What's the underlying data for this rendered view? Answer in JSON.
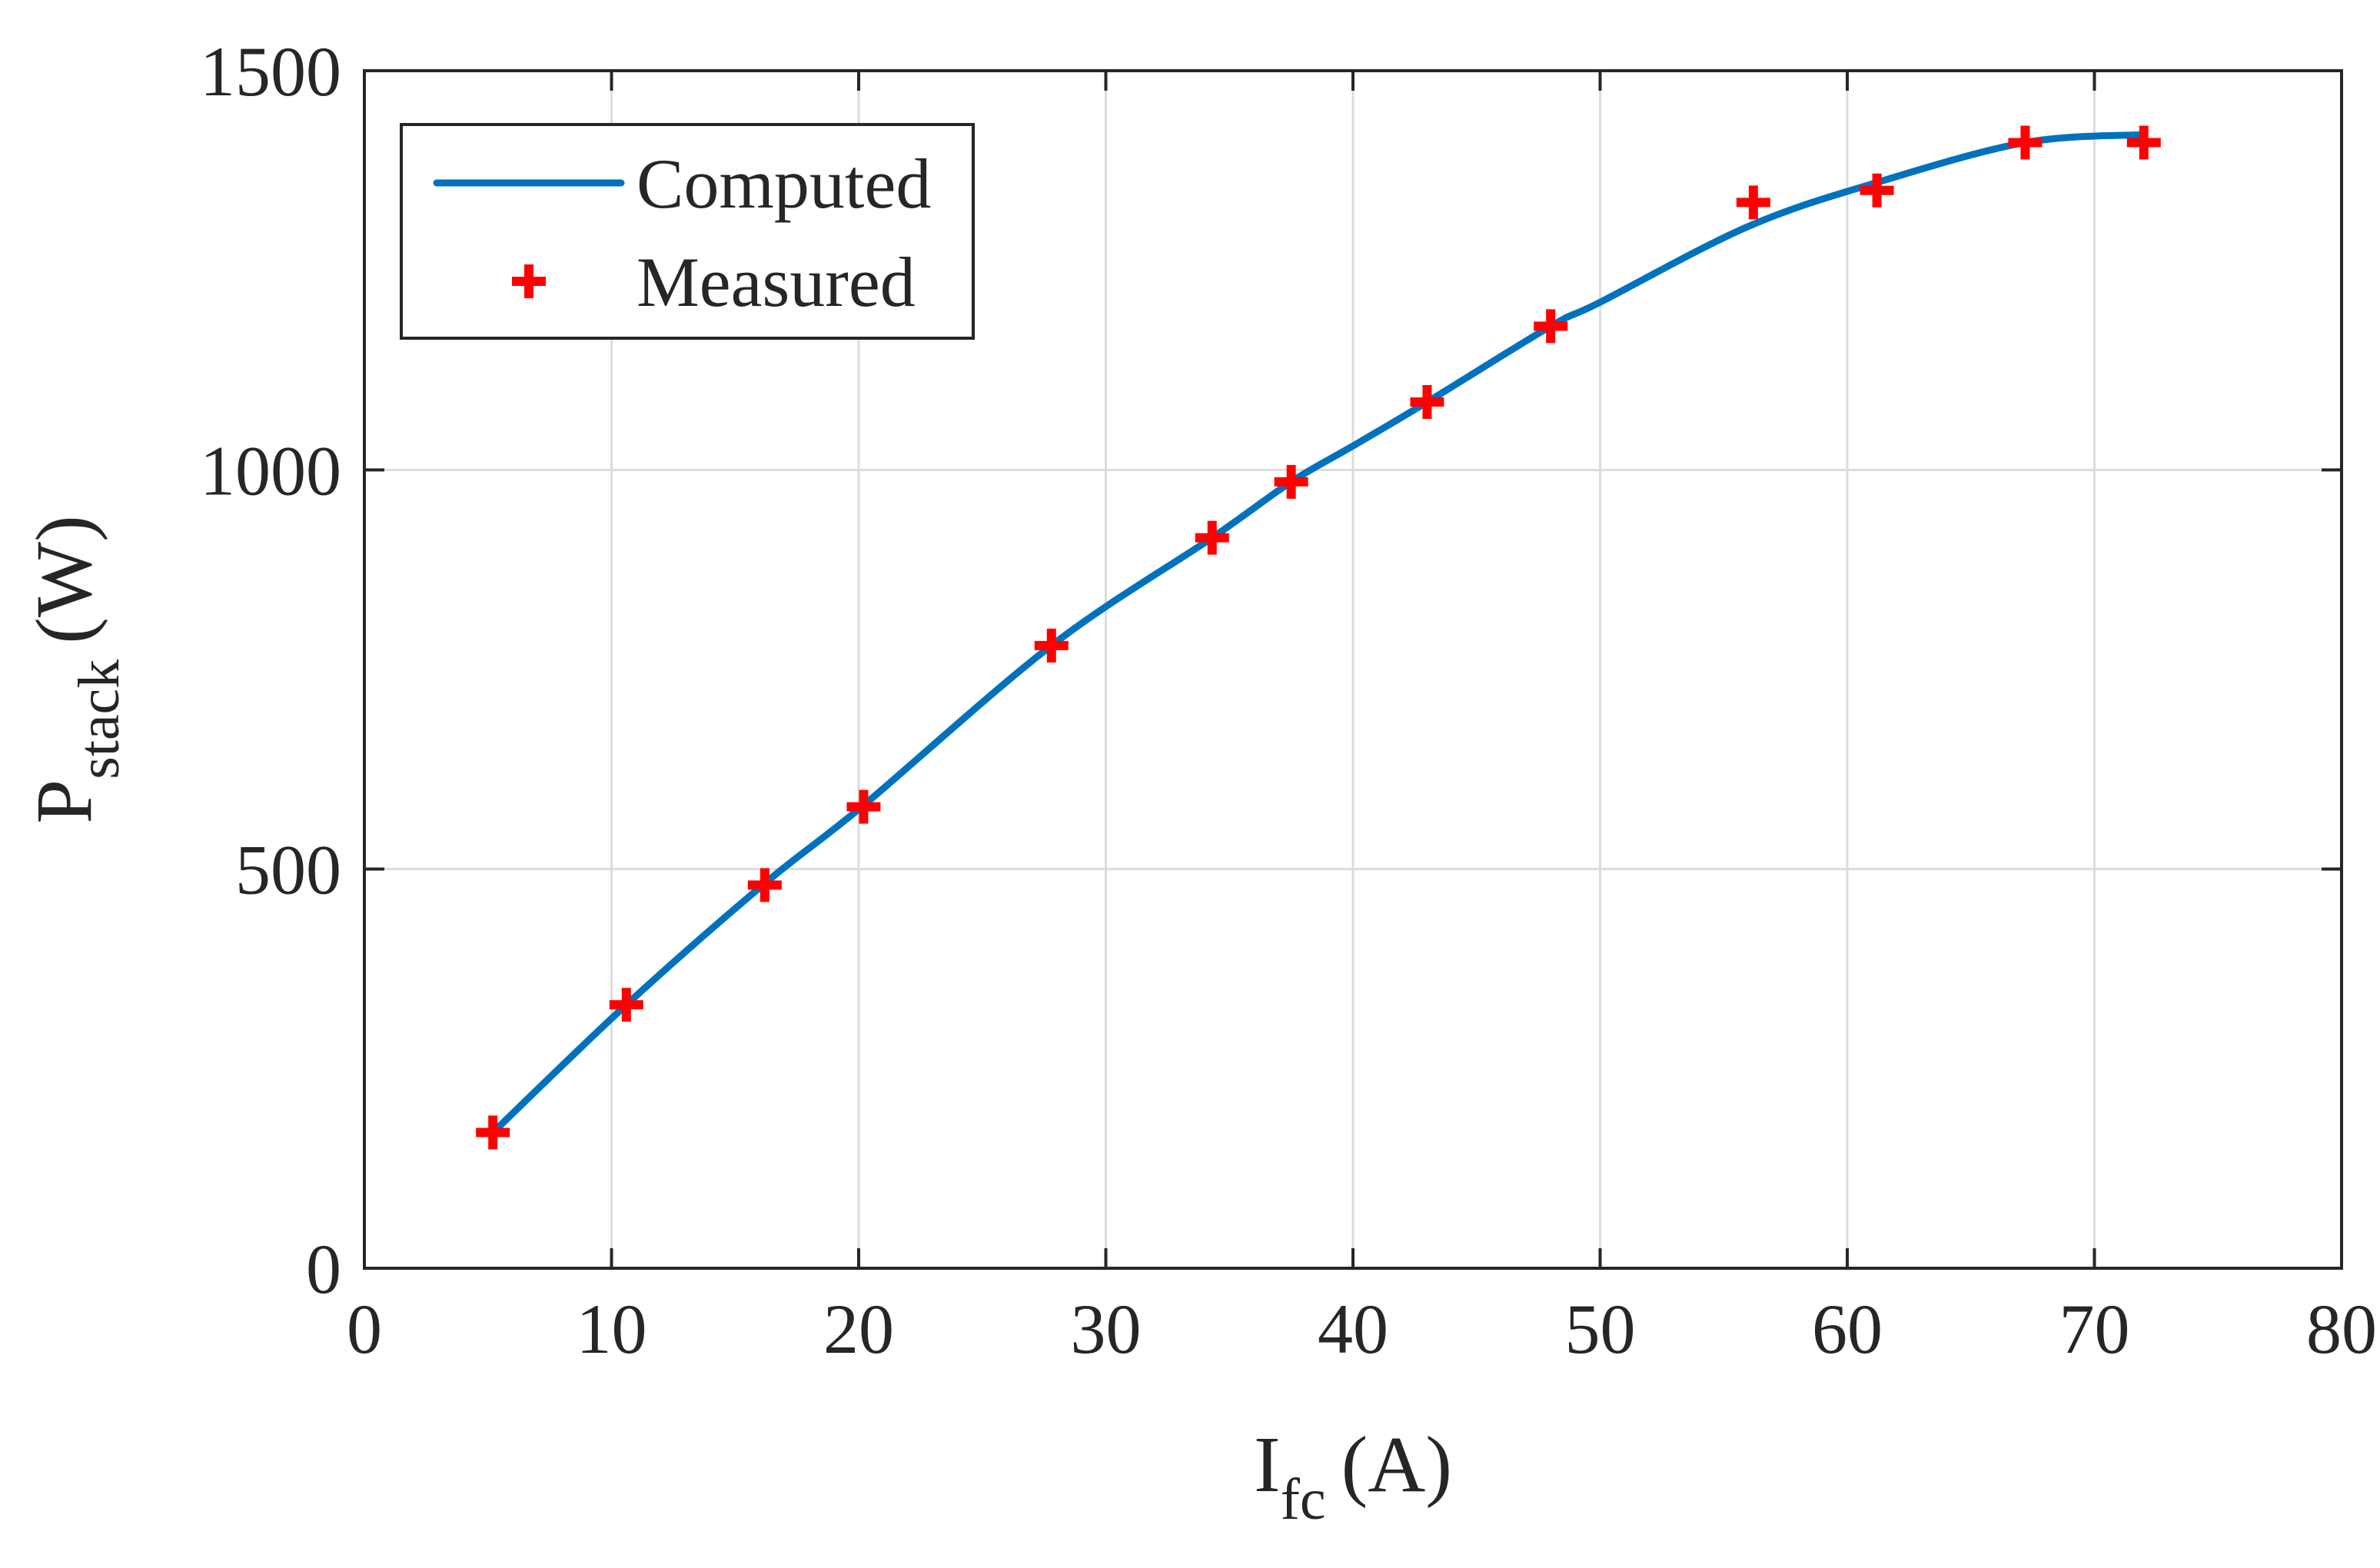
{
  "chart_data": {
    "type": "line",
    "title": "",
    "xlabel": {
      "main": "I",
      "sub": "fc",
      "unit": "(A)"
    },
    "ylabel": {
      "main": "P",
      "sub": "stack",
      "unit": "(W)"
    },
    "xlim": [
      0,
      80
    ],
    "ylim": [
      0,
      1500
    ],
    "xticks": [
      0,
      10,
      20,
      30,
      40,
      50,
      60,
      70,
      80
    ],
    "yticks": [
      0,
      500,
      1000,
      1500
    ],
    "xtick_labels": [
      "0",
      "10",
      "20",
      "30",
      "40",
      "50",
      "60",
      "70",
      "80"
    ],
    "ytick_labels": [
      "0",
      "500",
      "1000",
      "1500"
    ],
    "grid": true,
    "legend_position": "top-left",
    "series": [
      {
        "name": "Computed",
        "kind": "line",
        "color": "#0072BD",
        "x": [
          5.2,
          10.6,
          16.2,
          20.2,
          27.8,
          34.3,
          37.5,
          40,
          43,
          48,
          50,
          56,
          61.2,
          67.2,
          72
        ],
        "y": [
          170,
          330,
          482,
          580,
          780,
          915,
          985,
          1030,
          1085,
          1180,
          1210,
          1305,
          1360,
          1410,
          1420
        ]
      },
      {
        "name": "Measured",
        "kind": "scatter",
        "marker": "+",
        "color": "#FF0000",
        "x": [
          5.2,
          10.6,
          16.2,
          20.2,
          27.8,
          34.3,
          37.5,
          43,
          48,
          56.2,
          61.2,
          67.2,
          72
        ],
        "y": [
          170,
          330,
          480,
          578,
          780,
          915,
          985,
          1085,
          1180,
          1335,
          1350,
          1410,
          1410
        ]
      }
    ]
  }
}
